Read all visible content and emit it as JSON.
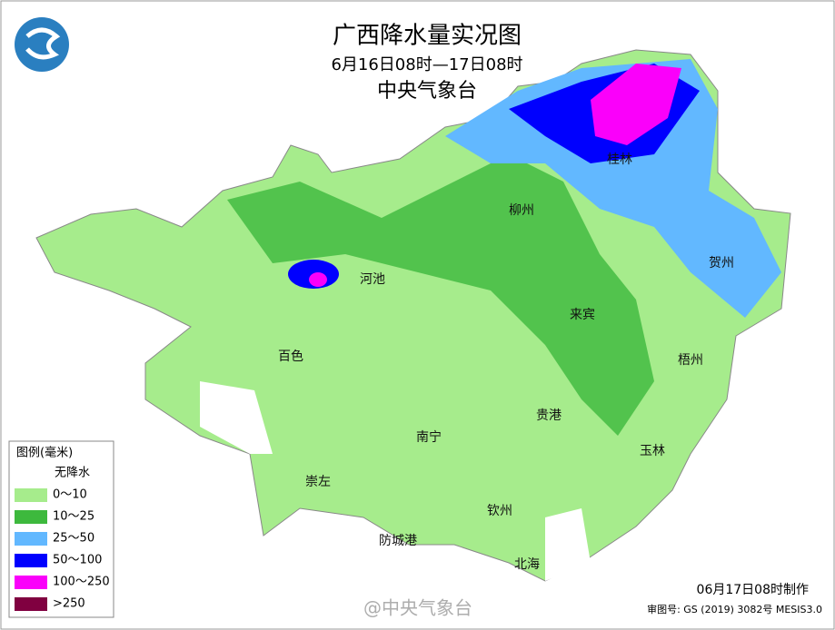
{
  "header": {
    "title": "广西降水量实况图",
    "subtitle": "6月16日08时—17日08时",
    "agency": "中央气象台"
  },
  "cities": [
    "桂林",
    "柳州",
    "河池",
    "贺州",
    "来宾",
    "百色",
    "梧州",
    "贵港",
    "南宁",
    "玉林",
    "崇左",
    "钦州",
    "防城港",
    "北海"
  ],
  "legend": {
    "title": "图例(毫米)",
    "items": [
      {
        "label": "无降水",
        "color": "#ffffff"
      },
      {
        "label": "0～10",
        "color": "#a6ec8c"
      },
      {
        "label": "10～25",
        "color": "#3db93d"
      },
      {
        "label": "25～50",
        "color": "#62b8ff"
      },
      {
        "label": "50～100",
        "color": "#0000fe"
      },
      {
        "label": "100～250",
        "color": "#fa00fa"
      },
      {
        "label": ">250",
        "color": "#800040"
      }
    ]
  },
  "footer": {
    "made": "06月17日08时制作",
    "approval": "审图号: GS (2019) 3082号 MESIS3.0",
    "watermark": "@中央气象台"
  }
}
